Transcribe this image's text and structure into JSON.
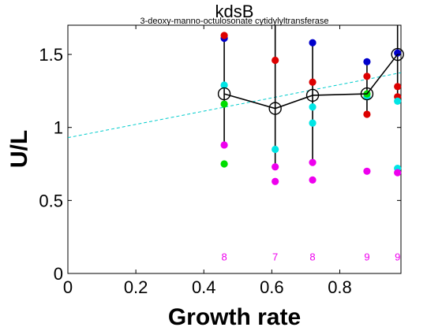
{
  "chart_data": {
    "type": "scatter",
    "title": "kdsB",
    "subtitle": "3-deoxy-manno-octulosonate cytidylyltransferase",
    "xlabel": "Growth rate",
    "ylabel": "U/L",
    "xlim": [
      0,
      0.98
    ],
    "ylim": [
      0,
      1.7
    ],
    "xticks": [
      {
        "value": 0,
        "label": "0"
      },
      {
        "value": 0.2,
        "label": "0.2"
      },
      {
        "value": 0.4,
        "label": "0.4"
      },
      {
        "value": 0.6,
        "label": "0.6"
      },
      {
        "value": 0.8,
        "label": "0.8"
      }
    ],
    "yticks": [
      {
        "value": 0,
        "label": "0"
      },
      {
        "value": 0.5,
        "label": "0.5"
      },
      {
        "value": 1,
        "label": "1"
      },
      {
        "value": 1.5,
        "label": "1.5"
      }
    ],
    "grid": false,
    "colors": {
      "blue": "#0000cc",
      "red": "#dd0000",
      "cyan": "#00e5e5",
      "green": "#00dd00",
      "magenta": "#ee00ee",
      "trend": "#00cccc",
      "mean": "#000000"
    },
    "growth_rates": [
      0.46,
      0.61,
      0.72,
      0.88,
      0.97
    ],
    "series": [
      {
        "color": "blue",
        "values": [
          1.61,
          null,
          1.58,
          1.45,
          1.51
        ]
      },
      {
        "color": "red",
        "values": [
          1.63,
          1.46,
          1.31,
          1.35,
          1.28
        ]
      },
      {
        "color": "red",
        "values": [
          null,
          null,
          null,
          1.09,
          1.21
        ]
      },
      {
        "color": "cyan",
        "values": [
          1.29,
          0.85,
          1.14,
          1.21,
          1.18
        ]
      },
      {
        "color": "cyan",
        "values": [
          null,
          null,
          1.03,
          null,
          0.72
        ]
      },
      {
        "color": "green",
        "values": [
          1.16,
          null,
          null,
          1.23,
          null
        ]
      },
      {
        "color": "green",
        "values": [
          0.75,
          null,
          null,
          null,
          null
        ]
      },
      {
        "color": "magenta",
        "values": [
          0.88,
          0.73,
          0.76,
          0.7,
          0.69
        ]
      },
      {
        "color": "magenta",
        "values": [
          null,
          0.63,
          0.64,
          null,
          null
        ]
      }
    ],
    "mean": {
      "x": [
        0.46,
        0.61,
        0.72,
        0.88,
        0.97
      ],
      "y": [
        1.23,
        1.13,
        1.22,
        1.23,
        1.5
      ]
    },
    "error_bars": [
      {
        "x": 0.46,
        "low": 0.88,
        "high": 1.63
      },
      {
        "x": 0.61,
        "low": 0.73,
        "high": 1.7
      },
      {
        "x": 0.72,
        "low": 0.76,
        "high": 1.58
      },
      {
        "x": 0.88,
        "low": 1.09,
        "high": 1.45
      },
      {
        "x": 0.97,
        "low": 1.21,
        "high": 1.7
      }
    ],
    "trend_line": {
      "x": [
        0,
        0.98
      ],
      "y": [
        0.93,
        1.375
      ]
    },
    "counts": [
      {
        "x": 0.46,
        "label": "8"
      },
      {
        "x": 0.61,
        "label": "7"
      },
      {
        "x": 0.72,
        "label": "8"
      },
      {
        "x": 0.88,
        "label": "9"
      },
      {
        "x": 0.97,
        "label": "9"
      }
    ],
    "count_level": 0.11
  }
}
